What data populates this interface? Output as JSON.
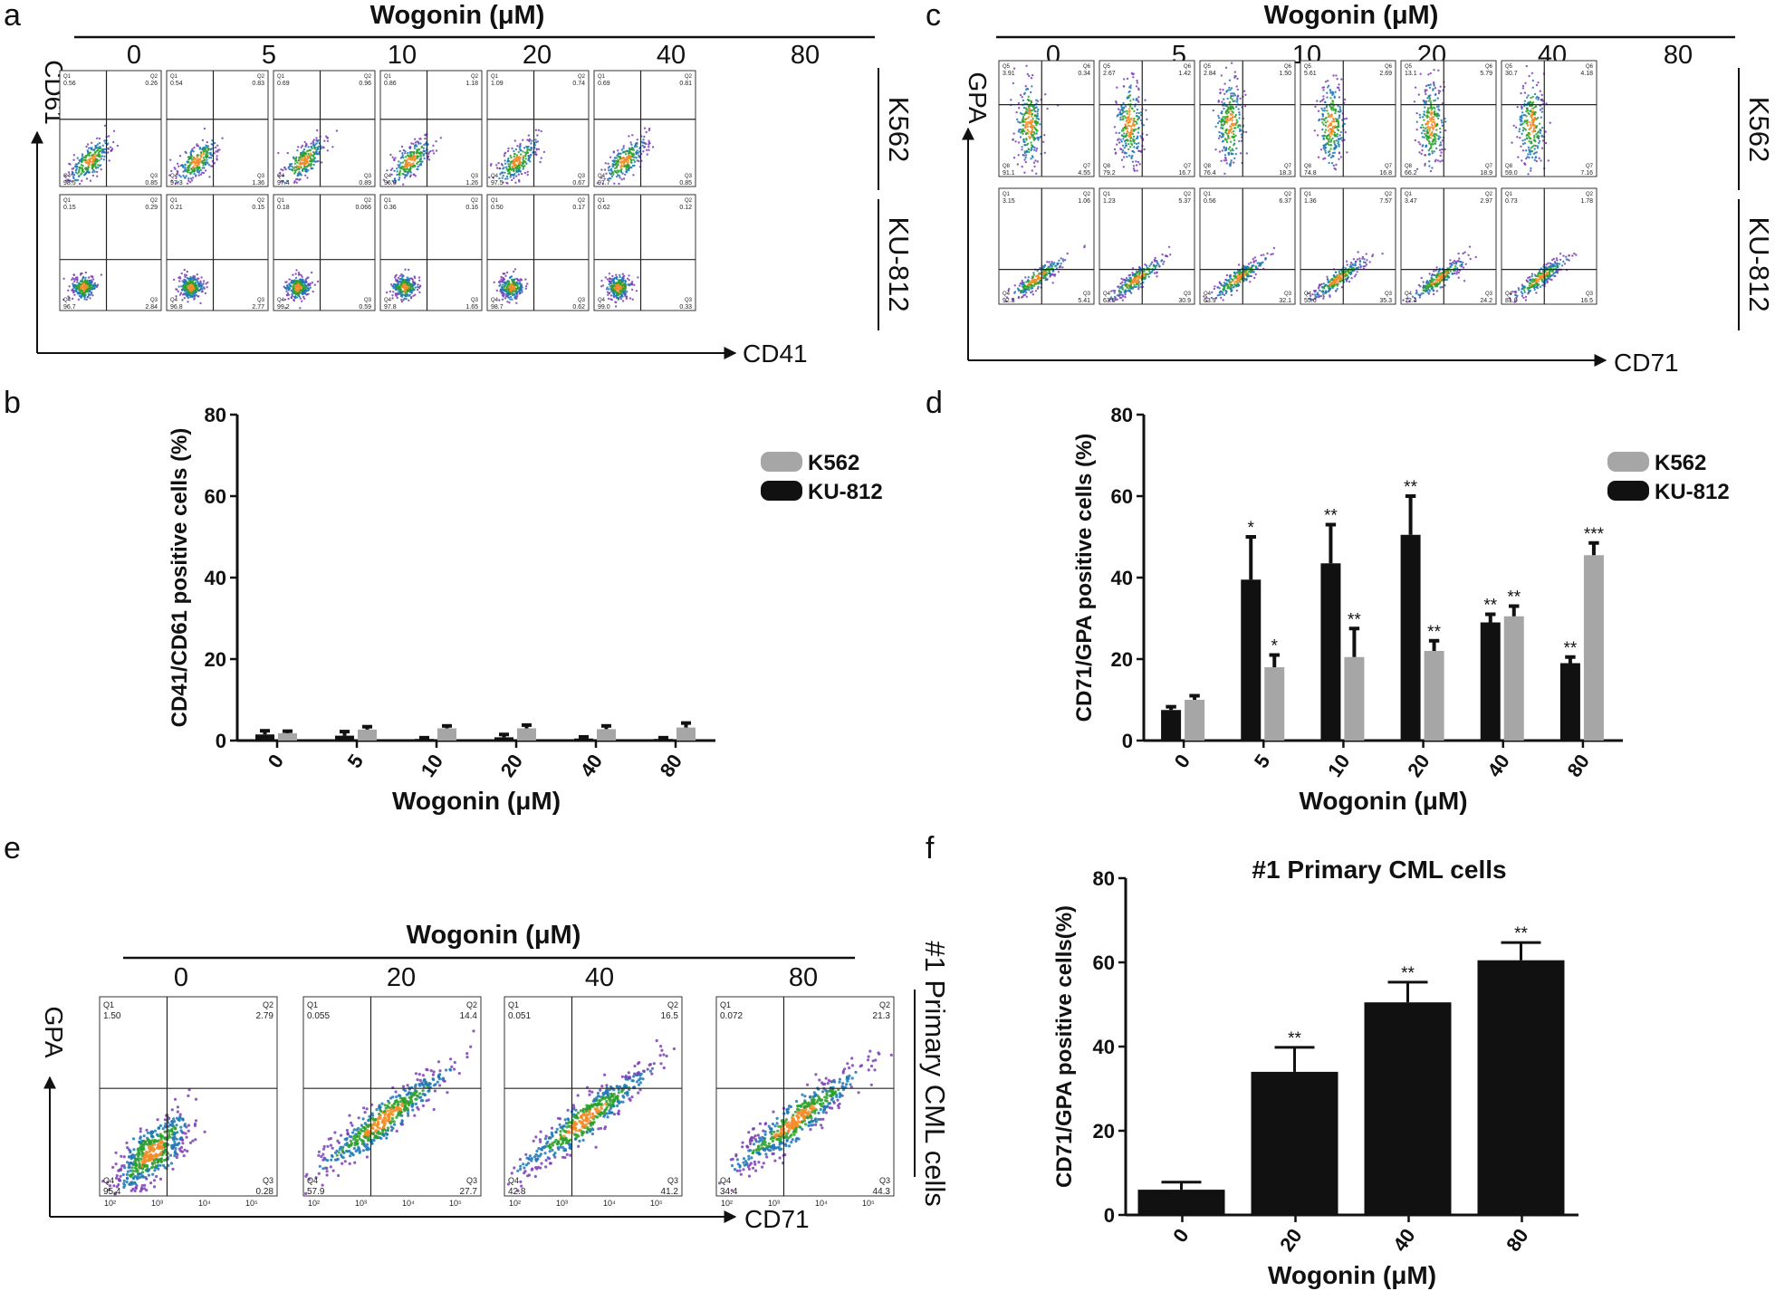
{
  "panel_letters": {
    "a": "a",
    "b": "b",
    "c": "c",
    "d": "d",
    "e": "e",
    "f": "f"
  },
  "panel_a": {
    "header": "Wogonin (μM)",
    "doses": [
      "0",
      "5",
      "10",
      "20",
      "40",
      "80"
    ],
    "y_axis": "CD61",
    "x_axis": "CD41",
    "rows": [
      {
        "cell_line": "K562",
        "gates": [
          "Q1",
          "Q2",
          "Q3",
          "Q4"
        ],
        "values": [
          [
            "0.56",
            "0.26",
            "0.85",
            "98.5"
          ],
          [
            "0.54",
            "0.83",
            "1.36",
            "97.3"
          ],
          [
            "0.69",
            "0.96",
            "0.89",
            "97.4"
          ],
          [
            "0.86",
            "1.18",
            "1.26",
            "96.6"
          ],
          [
            "1.09",
            "0.74",
            "0.67",
            "97.5"
          ],
          [
            "0.69",
            "0.81",
            "0.85",
            "97.7"
          ]
        ]
      },
      {
        "cell_line": "KU-812",
        "gates": [
          "Q1",
          "Q2",
          "Q3",
          "Q4"
        ],
        "values": [
          [
            "0.15",
            "0.29",
            "2.84",
            "96.7"
          ],
          [
            "0.21",
            "0.15",
            "2.77",
            "96.8"
          ],
          [
            "0.18",
            "0.066",
            "0.59",
            "99.2"
          ],
          [
            "0.36",
            "0.16",
            "1.65",
            "97.8"
          ],
          [
            "0.50",
            "0.17",
            "0.62",
            "98.7"
          ],
          [
            "0.62",
            "0.12",
            "0.33",
            "99.0"
          ]
        ]
      }
    ]
  },
  "panel_c": {
    "header": "Wogonin (μM)",
    "doses": [
      "0",
      "5",
      "10",
      "20",
      "40",
      "80"
    ],
    "y_axis": "GPA",
    "x_axis": "CD71",
    "rows": [
      {
        "cell_line": "K562",
        "gates": [
          "Q5",
          "Q6",
          "Q7",
          "Q8"
        ],
        "values": [
          [
            "3.91",
            "0.34",
            "4.55",
            "91.1"
          ],
          [
            "2.67",
            "1.42",
            "16.7",
            "79.2"
          ],
          [
            "2.84",
            "1.50",
            "18.3",
            "76.4"
          ],
          [
            "5.61",
            "2.69",
            "16.8",
            "74.8"
          ],
          [
            "13.1",
            "5.79",
            "18.9",
            "66.2"
          ],
          [
            "30.7",
            "4.18",
            "7.16",
            "59.0"
          ]
        ]
      },
      {
        "cell_line": "KU-812",
        "gates": [
          "Q1",
          "Q2",
          "Q3",
          "Q4"
        ],
        "values": [
          [
            "3.15",
            "1.06",
            "5.41",
            "92.3"
          ],
          [
            "1.23",
            "5.37",
            "30.9",
            "63.5"
          ],
          [
            "0.56",
            "6.37",
            "32.1",
            "63.9"
          ],
          [
            "1.36",
            "7.57",
            "35.3",
            "55.6"
          ],
          [
            "3.47",
            "2.97",
            "24.2",
            "72.4"
          ],
          [
            "0.73",
            "1.78",
            "16.5",
            "81.0"
          ]
        ]
      }
    ]
  },
  "panel_e": {
    "header": "Wogonin (μM)",
    "doses": [
      "0",
      "20",
      "40",
      "80"
    ],
    "y_axis": "GPA",
    "x_axis": "CD71",
    "side_label": "#1 Primary CML cells",
    "gates": [
      "Q1",
      "Q2",
      "Q3",
      "Q4"
    ],
    "values": [
      [
        "1.50",
        "2.79",
        "0.28",
        "95.4"
      ],
      [
        "0.055",
        "14.4",
        "27.7",
        "57.9"
      ],
      [
        "0.051",
        "16.5",
        "41.2",
        "42.8"
      ],
      [
        "0.072",
        "21.3",
        "44.3",
        "34.4"
      ]
    ],
    "tick_labels": [
      "10²",
      "10³",
      "10⁴",
      "10⁵"
    ]
  },
  "chart_data": [
    {
      "panel": "b",
      "type": "bar",
      "categories": [
        "0",
        "5",
        "10",
        "20",
        "40",
        "80"
      ],
      "series": [
        {
          "name": "KU-812",
          "color": "#111111",
          "values": [
            1.5,
            1.2,
            0.4,
            0.8,
            0.5,
            0.4
          ],
          "errors": [
            0.9,
            1.0,
            0.3,
            0.7,
            0.4,
            0.3
          ],
          "stars": [
            "",
            "",
            "",
            "",
            "",
            ""
          ]
        },
        {
          "name": "K562",
          "color": "#a6a6a6",
          "values": [
            1.8,
            2.7,
            3.0,
            3.0,
            2.8,
            3.2
          ],
          "errors": [
            0.5,
            0.7,
            0.6,
            0.8,
            0.8,
            1.1
          ],
          "stars": [
            "",
            "",
            "",
            "",
            "",
            ""
          ]
        }
      ],
      "legend_order": [
        "K562",
        "KU-812"
      ],
      "xlabel": "Wogonin (μM)",
      "ylabel": "CD41/CD61 positive cells (%)",
      "ylim": [
        0,
        80
      ],
      "yticks": [
        0,
        20,
        40,
        60,
        80
      ],
      "legend": "top-right"
    },
    {
      "panel": "d",
      "type": "bar",
      "categories": [
        "0",
        "5",
        "10",
        "20",
        "40",
        "80"
      ],
      "series": [
        {
          "name": "KU-812",
          "color": "#111111",
          "values": [
            7.5,
            39.5,
            43.5,
            50.5,
            29,
            19
          ],
          "errors": [
            0.8,
            10.5,
            9.5,
            9.5,
            2.0,
            1.5
          ],
          "stars": [
            "",
            "*",
            "**",
            "**",
            "**",
            "**"
          ]
        },
        {
          "name": "K562",
          "color": "#a6a6a6",
          "values": [
            10,
            18,
            20.5,
            22,
            30.5,
            45.5
          ],
          "errors": [
            1.0,
            3.0,
            7.0,
            2.5,
            2.5,
            3.0
          ],
          "stars": [
            "",
            "*",
            "**",
            "**",
            "**",
            "***"
          ]
        }
      ],
      "legend_order": [
        "K562",
        "KU-812"
      ],
      "xlabel": "Wogonin (μM)",
      "ylabel": "CD71/GPA positive cells (%)",
      "ylim": [
        0,
        80
      ],
      "yticks": [
        0,
        20,
        40,
        60,
        80
      ],
      "legend": "top-right"
    },
    {
      "panel": "f",
      "type": "bar",
      "title": "#1 Primary CML cells",
      "categories": [
        "0",
        "20",
        "40",
        "80"
      ],
      "series": [
        {
          "color": "#111111",
          "values": [
            6,
            34,
            50.5,
            60.5
          ],
          "errors": [
            1.8,
            5.8,
            4.8,
            4.2
          ],
          "stars": [
            "",
            "**",
            "**",
            "**"
          ]
        }
      ],
      "xlabel": "Wogonin (μM)",
      "ylabel": "CD71/GPA positive cells(%)",
      "ylim": [
        0,
        80
      ],
      "yticks": [
        0,
        20,
        40,
        60,
        80
      ]
    }
  ]
}
